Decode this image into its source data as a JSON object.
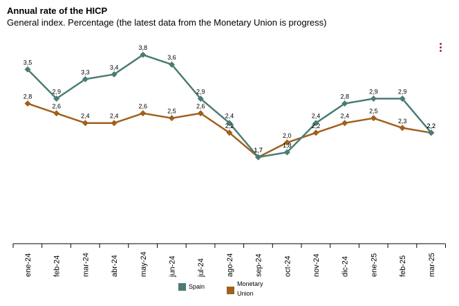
{
  "header": {
    "title": "Annual rate of the HICP",
    "subtitle": "General index. Percentage (the latest data from the Monetary Union is progress)"
  },
  "chart_data": {
    "type": "line",
    "title": "Annual rate of the HICP",
    "subtitle": "General index. Percentage (the latest data from the Monetary Union is progress)",
    "xlabel": "",
    "ylabel": "",
    "categories": [
      "ene-24",
      "feb-24",
      "mar-24",
      "abr-24",
      "may-24",
      "jun-24",
      "jul-24",
      "ago-24",
      "sep-24",
      "oct-24",
      "nov-24",
      "dic-24",
      "ene-25",
      "feb-25",
      "mar-25"
    ],
    "series": [
      {
        "name": "Spain",
        "color": "#4a7c75",
        "values": [
          3.5,
          2.9,
          3.3,
          3.4,
          3.8,
          3.6,
          2.9,
          2.4,
          1.7,
          1.8,
          2.4,
          2.8,
          2.9,
          2.9,
          2.2
        ],
        "labels": [
          "3,5",
          "2,9",
          "3,3",
          "3,4",
          "3,8",
          "3,6",
          "2,9",
          "2,4",
          "1,7",
          "1,8",
          "2,4",
          "2,8",
          "2,9",
          "2,9",
          "2,2"
        ]
      },
      {
        "name": "Monetary Union",
        "color": "#a15f1c",
        "values": [
          2.8,
          2.6,
          2.4,
          2.4,
          2.6,
          2.5,
          2.6,
          2.2,
          1.7,
          2.0,
          2.2,
          2.4,
          2.5,
          2.3,
          2.2
        ],
        "labels": [
          "2,8",
          "2,6",
          "2,4",
          "2,4",
          "2,6",
          "2,5",
          "2,6",
          "2,2",
          "1,7",
          "2,0",
          "2,2",
          "2,4",
          "2,5",
          "2,3",
          "2,2"
        ]
      }
    ],
    "ylim": [
      0,
      4.5
    ],
    "grid": false,
    "legend": "bottom-center"
  },
  "legend": {
    "items": [
      {
        "label": "Spain",
        "color": "#4a7c75"
      },
      {
        "label": "Monetary\nUnion",
        "color": "#a15f1c"
      }
    ]
  },
  "menu": {
    "icon": "vertical-dots-icon"
  }
}
